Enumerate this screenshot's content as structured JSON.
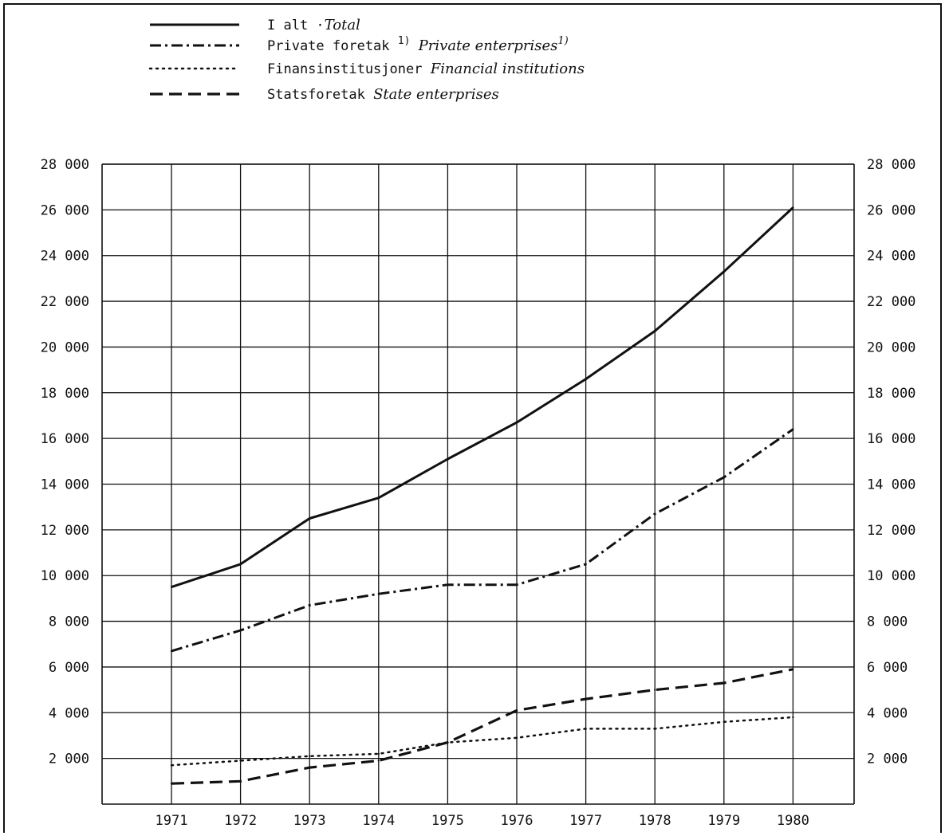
{
  "legend": [
    {
      "label_no": "I alt",
      "sep": "·",
      "label_en": "Total",
      "sup_no": "",
      "sup_en": "",
      "style": "solid"
    },
    {
      "label_no": "Private foretak",
      "sep": "",
      "label_en": "Private enterprises",
      "sup_no": "1)",
      "sup_en": "1)",
      "style": "dashdot"
    },
    {
      "label_no": "Finansinstitusjoner",
      "sep": "",
      "label_en": "Financial institutions",
      "sup_no": "",
      "sup_en": "",
      "style": "dotted"
    },
    {
      "label_no": "Statsforetak",
      "sep": "",
      "label_en": "State enterprises",
      "sup_no": "",
      "sup_en": "",
      "style": "dashed"
    }
  ],
  "chart_data": {
    "type": "line",
    "title": "",
    "xlabel": "",
    "ylabel": "",
    "x": [
      "1971",
      "1972",
      "1973",
      "1974",
      "1975",
      "1976",
      "1977",
      "1978",
      "1979",
      "1980"
    ],
    "ylim": [
      0,
      28000
    ],
    "yticks": [
      2000,
      4000,
      6000,
      8000,
      10000,
      12000,
      14000,
      16000,
      18000,
      20000,
      22000,
      24000,
      26000,
      28000
    ],
    "ytick_labels": [
      "2 000",
      "4 000",
      "6 000",
      "8 000",
      "10 000",
      "12 000",
      "14 000",
      "16 000",
      "18 000",
      "20 000",
      "22 000",
      "24 000",
      "26 000",
      "28 000"
    ],
    "grid": true,
    "legend_position": "top-left",
    "series": [
      {
        "name": "I alt ·Total",
        "style": "solid",
        "values": [
          9500,
          10500,
          12500,
          13400,
          15100,
          16700,
          18600,
          20700,
          23300,
          26100
        ]
      },
      {
        "name": "Private foretak Private enterprises",
        "style": "dashdot",
        "values": [
          6700,
          7600,
          8700,
          9200,
          9600,
          9600,
          10500,
          12700,
          14300,
          16400
        ]
      },
      {
        "name": "Finansinstitusjoner Financial institutions",
        "style": "dotted",
        "values": [
          1700,
          1900,
          2100,
          2200,
          2700,
          2900,
          3300,
          3300,
          3600,
          3800
        ]
      },
      {
        "name": "Statsforetak State enterprises",
        "style": "dashed",
        "values": [
          900,
          1000,
          1600,
          1900,
          2700,
          4100,
          4600,
          5000,
          5300,
          5900
        ]
      }
    ]
  }
}
